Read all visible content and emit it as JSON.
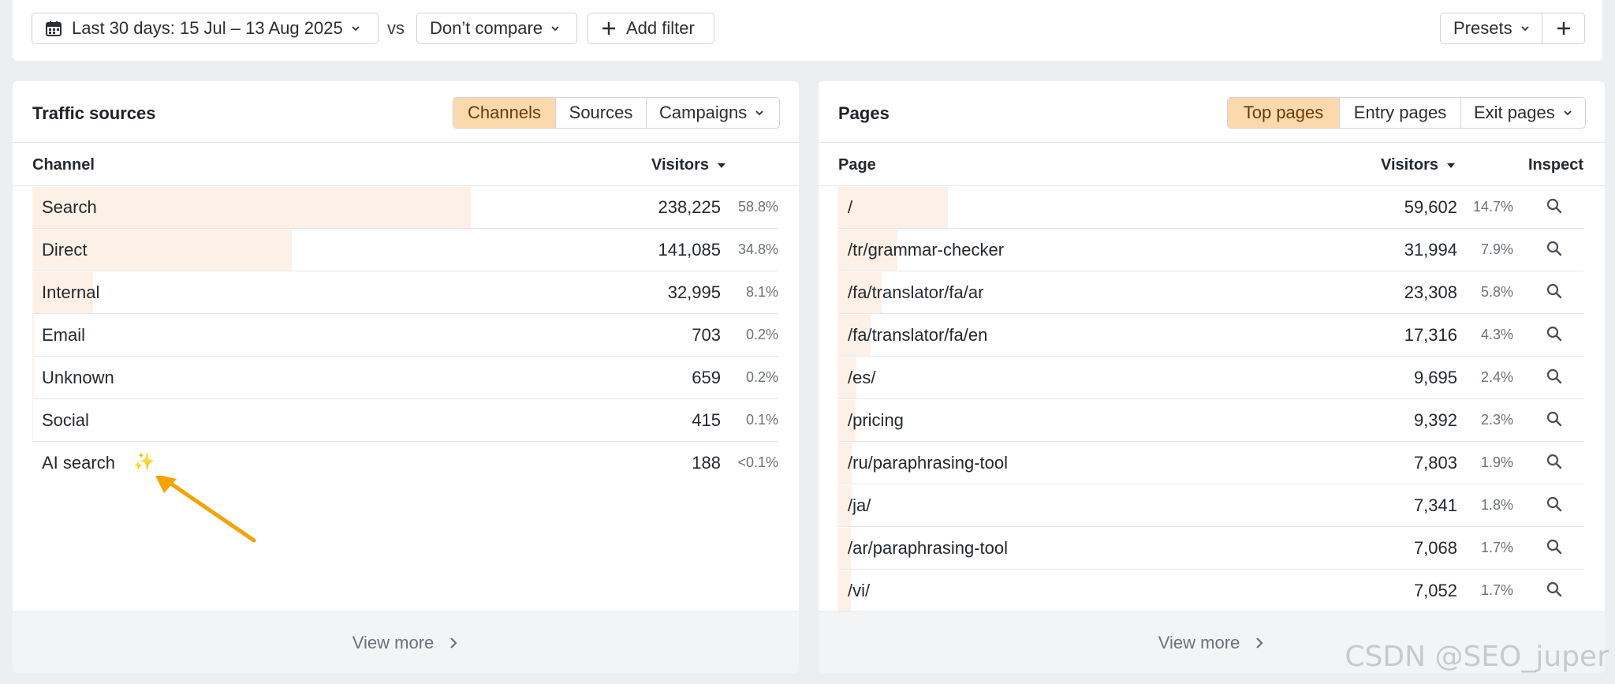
{
  "filters": {
    "date_range": "Last 30 days: 15 Jul – 13 Aug 2025",
    "vs_label": "vs",
    "compare": "Don’t compare",
    "add_filter": "Add filter",
    "presets": "Presets",
    "add_preset_symbol": "+"
  },
  "traffic": {
    "title": "Traffic sources",
    "tabs": [
      "Channels",
      "Sources",
      "Campaigns"
    ],
    "active_tab": "Channels",
    "col_channel": "Channel",
    "col_visitors": "Visitors",
    "rows": [
      {
        "label": "Search",
        "visitors": "238,225",
        "pct": "58.8%",
        "share": 0.588
      },
      {
        "label": "Direct",
        "visitors": "141,085",
        "pct": "34.8%",
        "share": 0.348
      },
      {
        "label": "Internal",
        "visitors": "32,995",
        "pct": "8.1%",
        "share": 0.081
      },
      {
        "label": "Email",
        "visitors": "703",
        "pct": "0.2%",
        "share": 0.002
      },
      {
        "label": "Unknown",
        "visitors": "659",
        "pct": "0.2%",
        "share": 0.002
      },
      {
        "label": "Social",
        "visitors": "415",
        "pct": "0.1%",
        "share": 0.001
      },
      {
        "label": "AI search",
        "visitors": "188",
        "pct": "<0.1%",
        "share": 0.0
      }
    ],
    "ai_sparkle": "✨",
    "view_more": "View more"
  },
  "pages": {
    "title": "Pages",
    "tabs": [
      "Top pages",
      "Entry pages",
      "Exit pages"
    ],
    "active_tab": "Top pages",
    "col_page": "Page",
    "col_visitors": "Visitors",
    "col_inspect": "Inspect",
    "rows": [
      {
        "label": "/",
        "visitors": "59,602",
        "pct": "14.7%",
        "share": 0.147
      },
      {
        "label": "/tr/grammar-checker",
        "visitors": "31,994",
        "pct": "7.9%",
        "share": 0.079
      },
      {
        "label": "/fa/translator/fa/ar",
        "visitors": "23,308",
        "pct": "5.8%",
        "share": 0.058
      },
      {
        "label": "/fa/translator/fa/en",
        "visitors": "17,316",
        "pct": "4.3%",
        "share": 0.043
      },
      {
        "label": "/es/",
        "visitors": "9,695",
        "pct": "2.4%",
        "share": 0.024
      },
      {
        "label": "/pricing",
        "visitors": "9,392",
        "pct": "2.3%",
        "share": 0.023
      },
      {
        "label": "/ru/paraphrasing-tool",
        "visitors": "7,803",
        "pct": "1.9%",
        "share": 0.019
      },
      {
        "label": "/ja/",
        "visitors": "7,341",
        "pct": "1.8%",
        "share": 0.018
      },
      {
        "label": "/ar/paraphrasing-tool",
        "visitors": "7,068",
        "pct": "1.7%",
        "share": 0.017
      },
      {
        "label": "/vi/",
        "visitors": "7,052",
        "pct": "1.7%",
        "share": 0.017
      }
    ],
    "view_more": "View more"
  },
  "watermark": "CSDN @SEO_juper",
  "colors": {
    "accent": "#fcd9ad",
    "bar": "#fdf0e6",
    "ai_label": "#5b2bd6",
    "arrow": "#f5a300"
  },
  "icons": [
    "calendar-icon",
    "chevron-down-icon",
    "plus-icon",
    "sort-desc-icon",
    "search-icon",
    "chevron-right-icon",
    "sparkle-icon",
    "arrow-annotation"
  ]
}
